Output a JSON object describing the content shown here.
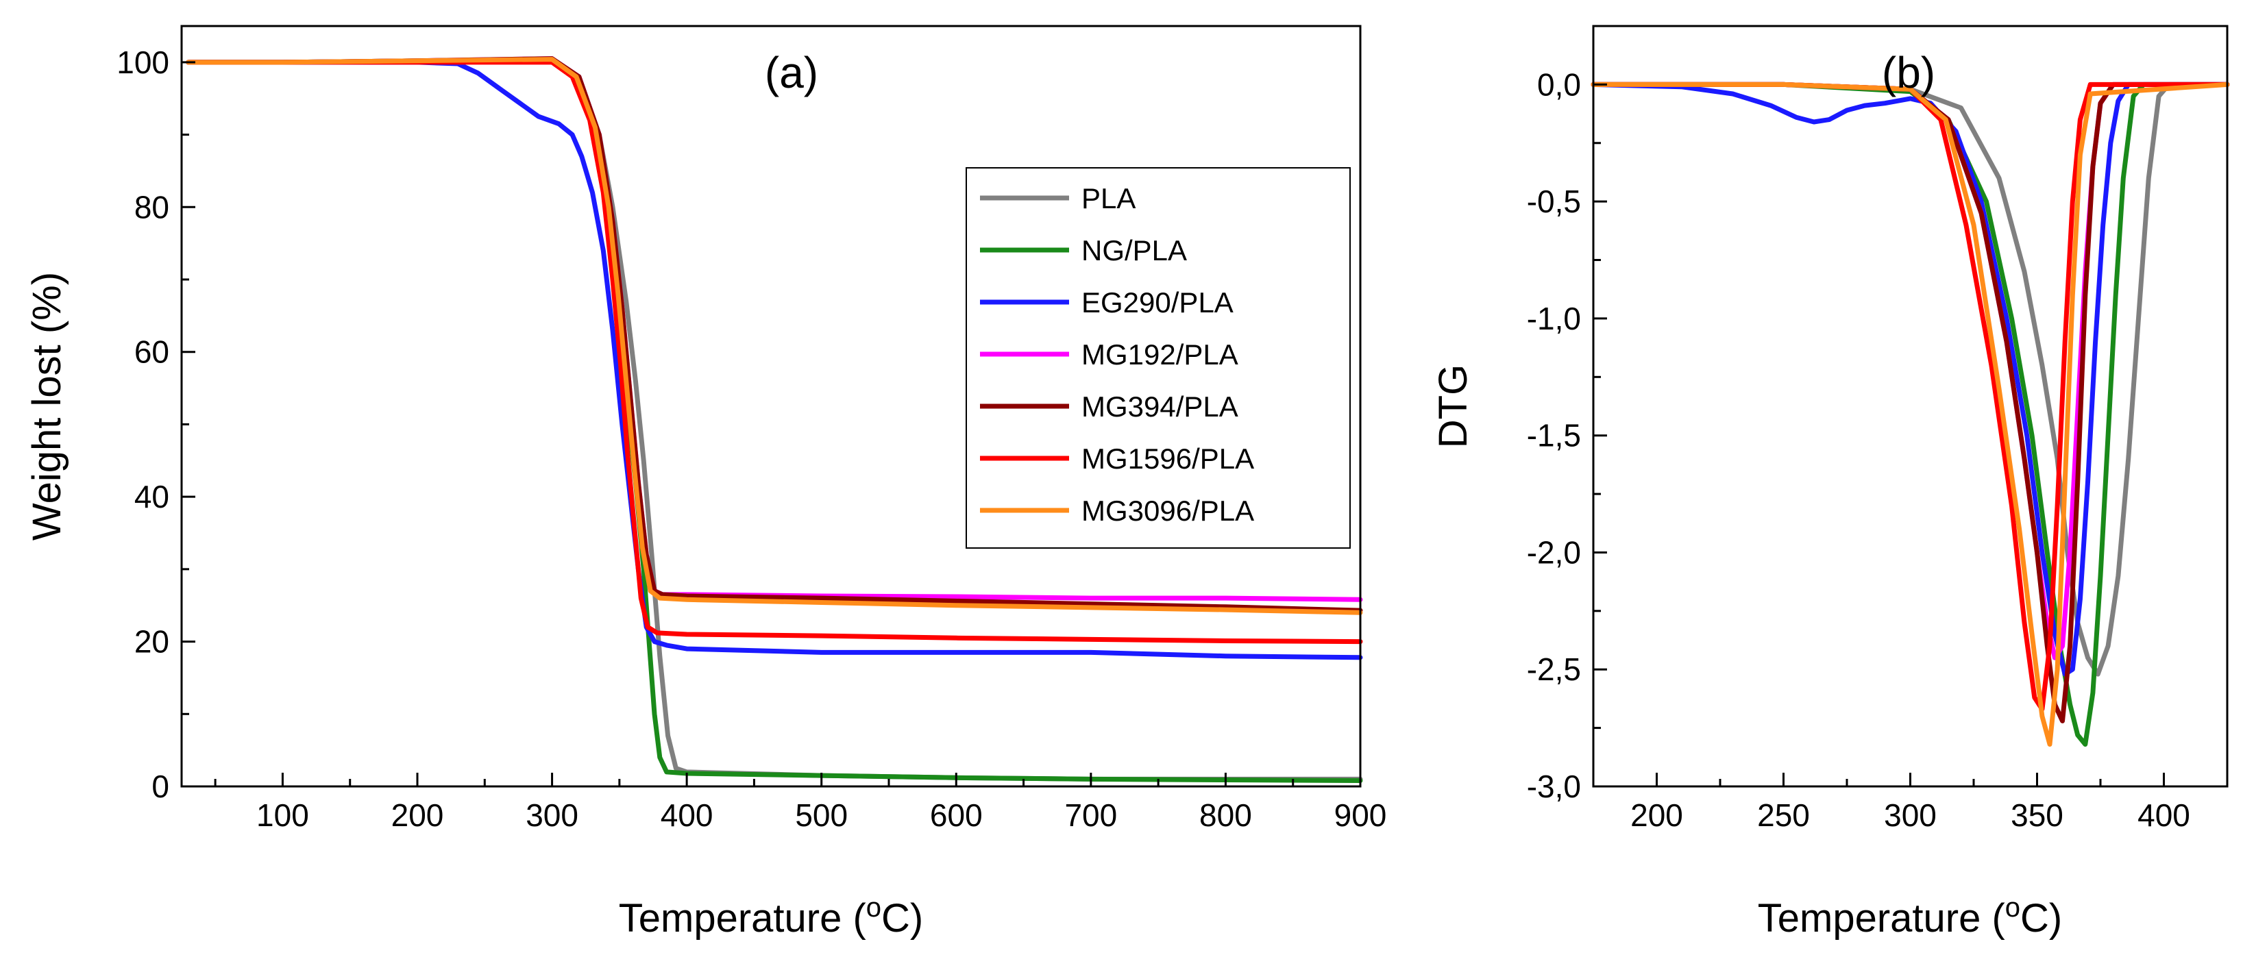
{
  "chart_data": [
    {
      "type": "line",
      "panel_label": "(a)",
      "xlabel": "Temperature (",
      "xlabel_sup": "o",
      "xlabel_tail": "C)",
      "ylabel": "Weight lost (%)",
      "xlim": [
        25,
        900
      ],
      "ylim": [
        0,
        105
      ],
      "xticks": [
        100,
        200,
        300,
        400,
        500,
        600,
        700,
        800,
        900
      ],
      "yticks": [
        0,
        20,
        40,
        60,
        80,
        100
      ],
      "legend_position": "upper-right",
      "series": [
        {
          "name": "PLA",
          "color": "#808080",
          "x": [
            30,
            100,
            200,
            300,
            320,
            335,
            345,
            355,
            362,
            368,
            374,
            380,
            386,
            392,
            400,
            500,
            600,
            700,
            800,
            900
          ],
          "y": [
            100,
            100,
            100.2,
            100.2,
            98,
            90,
            80,
            67,
            56,
            45,
            32,
            18,
            7,
            2.5,
            2,
            1.5,
            1.2,
            1,
            1,
            1
          ]
        },
        {
          "name": "NG/PLA",
          "color": "#1a8a1a",
          "x": [
            30,
            100,
            200,
            300,
            318,
            332,
            342,
            350,
            356,
            362,
            368,
            372,
            376,
            380,
            385,
            400,
            500,
            600,
            700,
            800,
            900
          ],
          "y": [
            100,
            100,
            100.2,
            100.2,
            98,
            90,
            78,
            64,
            52,
            42,
            30,
            20,
            10,
            4,
            2,
            1.8,
            1.5,
            1.2,
            1,
            0.9,
            0.8
          ]
        },
        {
          "name": "EG290/PLA",
          "color": "#1a1aff",
          "x": [
            30,
            100,
            200,
            230,
            245,
            260,
            275,
            290,
            305,
            315,
            322,
            330,
            338,
            345,
            352,
            358,
            364,
            370,
            376,
            385,
            400,
            500,
            600,
            700,
            800,
            900
          ],
          "y": [
            100,
            100,
            100,
            99.8,
            98.5,
            96.5,
            94.5,
            92.5,
            91.5,
            90,
            87,
            82,
            74,
            63,
            50,
            40,
            30,
            22,
            20,
            19.5,
            19,
            18.5,
            18.5,
            18.5,
            18,
            17.8
          ]
        },
        {
          "name": "MG192/PLA",
          "color": "#ff00ff",
          "x": [
            30,
            100,
            200,
            300,
            320,
            335,
            345,
            352,
            358,
            364,
            370,
            376,
            382,
            400,
            500,
            600,
            700,
            800,
            900
          ],
          "y": [
            100,
            100,
            100.2,
            100.5,
            98,
            90,
            78,
            66,
            54,
            42,
            32,
            27,
            26.5,
            26.5,
            26.3,
            26.2,
            26,
            26,
            25.8
          ]
        },
        {
          "name": "MG394/PLA",
          "color": "#8b0000",
          "x": [
            30,
            100,
            200,
            300,
            320,
            335,
            345,
            352,
            358,
            364,
            370,
            376,
            382,
            400,
            500,
            600,
            700,
            800,
            900
          ],
          "y": [
            100,
            100,
            100.2,
            100.5,
            98,
            90,
            78,
            66,
            54,
            42,
            32,
            27,
            26.5,
            26.3,
            26,
            25.6,
            25.2,
            24.8,
            24.3
          ]
        },
        {
          "name": "MG1596/PLA",
          "color": "#ff0000",
          "x": [
            30,
            100,
            200,
            300,
            315,
            328,
            338,
            345,
            351,
            356,
            361,
            366,
            371,
            378,
            400,
            500,
            600,
            700,
            800,
            900
          ],
          "y": [
            100,
            100,
            100,
            100,
            98,
            92,
            82,
            70,
            58,
            46,
            36,
            26,
            22,
            21.2,
            21,
            20.8,
            20.5,
            20.3,
            20.1,
            20
          ]
        },
        {
          "name": "MG3096/PLA",
          "color": "#ff8c1a",
          "x": [
            30,
            100,
            200,
            300,
            318,
            332,
            342,
            349,
            355,
            361,
            367,
            373,
            380,
            400,
            500,
            600,
            700,
            800,
            900
          ],
          "y": [
            100,
            100,
            100.2,
            100.4,
            98,
            91,
            80,
            68,
            56,
            44,
            33,
            27,
            26,
            25.8,
            25.4,
            25,
            24.7,
            24.4,
            24
          ]
        }
      ]
    },
    {
      "type": "line",
      "panel_label": "(b)",
      "xlabel": "Temperature (",
      "xlabel_sup": "o",
      "xlabel_tail": "C)",
      "ylabel": "DTG",
      "xlim": [
        175,
        425
      ],
      "ylim": [
        -3.0,
        0.25
      ],
      "xticks": [
        200,
        250,
        300,
        350,
        400
      ],
      "yticks": [
        0.0,
        -0.5,
        -1.0,
        -1.5,
        -2.0,
        -2.5,
        -3.0
      ],
      "ytick_labels": [
        "0,0",
        "-0,5",
        "-1,0",
        "-1,5",
        "-2,0",
        "-2,5",
        "-3,0"
      ],
      "series": [
        {
          "name": "PLA",
          "color": "#808080",
          "x": [
            175,
            250,
            300,
            320,
            335,
            345,
            352,
            358,
            362,
            366,
            370,
            374,
            378,
            382,
            386,
            390,
            394,
            398,
            402,
            425
          ],
          "y": [
            0,
            0,
            -0.02,
            -0.1,
            -0.4,
            -0.8,
            -1.2,
            -1.6,
            -2.0,
            -2.3,
            -2.45,
            -2.52,
            -2.4,
            -2.1,
            -1.6,
            -1.0,
            -0.4,
            -0.05,
            0,
            0
          ]
        },
        {
          "name": "NG/PLA",
          "color": "#1a8a1a",
          "x": [
            175,
            250,
            300,
            315,
            330,
            340,
            348,
            354,
            359,
            363,
            366,
            369,
            372,
            375,
            378,
            381,
            384,
            388,
            392,
            425
          ],
          "y": [
            0,
            0,
            -0.03,
            -0.15,
            -0.5,
            -1.0,
            -1.5,
            -2.0,
            -2.4,
            -2.65,
            -2.78,
            -2.82,
            -2.6,
            -2.1,
            -1.5,
            -0.9,
            -0.4,
            -0.05,
            0,
            0
          ]
        },
        {
          "name": "EG290/PLA",
          "color": "#1a1aff",
          "x": [
            175,
            210,
            230,
            245,
            255,
            262,
            268,
            275,
            282,
            290,
            300,
            308,
            318,
            328,
            338,
            346,
            352,
            357,
            361,
            364,
            367,
            370,
            373,
            376,
            379,
            382,
            386,
            425
          ],
          "y": [
            0,
            -0.01,
            -0.04,
            -0.09,
            -0.14,
            -0.16,
            -0.15,
            -0.11,
            -0.09,
            -0.08,
            -0.06,
            -0.08,
            -0.2,
            -0.5,
            -1.0,
            -1.5,
            -2.0,
            -2.35,
            -2.52,
            -2.5,
            -2.2,
            -1.7,
            -1.1,
            -0.6,
            -0.25,
            -0.07,
            0,
            0
          ]
        },
        {
          "name": "MG192/PLA",
          "color": "#ff00ff",
          "x": [
            175,
            250,
            300,
            315,
            328,
            338,
            345,
            350,
            354,
            357,
            360,
            363,
            366,
            369,
            372,
            375,
            380,
            425
          ],
          "y": [
            0,
            0,
            -0.02,
            -0.15,
            -0.55,
            -1.1,
            -1.6,
            -2.0,
            -2.3,
            -2.45,
            -2.4,
            -2.0,
            -1.4,
            -0.8,
            -0.35,
            -0.08,
            0,
            0
          ]
        },
        {
          "name": "MG394/PLA",
          "color": "#8b0000",
          "x": [
            175,
            250,
            300,
            315,
            328,
            338,
            345,
            350,
            354,
            357,
            360,
            363,
            366,
            369,
            372,
            375,
            380,
            425
          ],
          "y": [
            0,
            0,
            -0.02,
            -0.15,
            -0.55,
            -1.1,
            -1.6,
            -2.0,
            -2.4,
            -2.65,
            -2.72,
            -2.4,
            -1.7,
            -0.9,
            -0.35,
            -0.08,
            0,
            0
          ]
        },
        {
          "name": "MG1596/PLA",
          "color": "#ff0000",
          "x": [
            175,
            250,
            300,
            312,
            322,
            332,
            340,
            345,
            349,
            352,
            355,
            358,
            361,
            364,
            367,
            371,
            425
          ],
          "y": [
            0,
            0,
            -0.02,
            -0.15,
            -0.6,
            -1.2,
            -1.8,
            -2.3,
            -2.62,
            -2.67,
            -2.4,
            -1.8,
            -1.1,
            -0.5,
            -0.15,
            0,
            0
          ]
        },
        {
          "name": "MG3096/PLA",
          "color": "#ff8c1a",
          "x": [
            175,
            250,
            300,
            314,
            325,
            335,
            343,
            348,
            352,
            355,
            358,
            361,
            364,
            367,
            371,
            425
          ],
          "y": [
            0,
            0,
            -0.02,
            -0.15,
            -0.6,
            -1.3,
            -1.9,
            -2.35,
            -2.7,
            -2.82,
            -2.5,
            -1.7,
            -0.9,
            -0.3,
            -0.04,
            0
          ]
        }
      ]
    }
  ]
}
